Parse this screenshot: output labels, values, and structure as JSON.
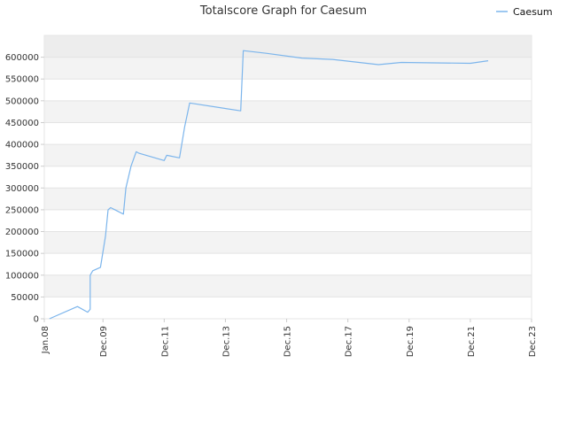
{
  "chart_data": {
    "type": "line",
    "title": "Totalscore Graph for Caesum",
    "xlabel": "",
    "ylabel": "",
    "x_tick_labels": [
      "Jan.08",
      "Dec.09",
      "Dec.11",
      "Dec.13",
      "Dec.15",
      "Dec.17",
      "Dec.19",
      "Dec.21",
      "Dec.23"
    ],
    "y_tick_labels": [
      "0",
      "50000",
      "100000",
      "150000",
      "200000",
      "250000",
      "300000",
      "350000",
      "400000",
      "450000",
      "500000",
      "550000",
      "600000"
    ],
    "x_range": [
      "2008-01",
      "2023-12"
    ],
    "ylim": [
      0,
      650000
    ],
    "grid": true,
    "legend_position": "top-right",
    "series": [
      {
        "name": "Caesum",
        "color": "#7cb5ec",
        "points": [
          [
            "2008-03",
            0
          ],
          [
            "2009-02",
            28000
          ],
          [
            "2009-06",
            15000
          ],
          [
            "2009-07",
            22000
          ],
          [
            "2009-07",
            100000
          ],
          [
            "2009-08",
            110000
          ],
          [
            "2009-11",
            118000
          ],
          [
            "2010-01",
            190000
          ],
          [
            "2010-02",
            250000
          ],
          [
            "2010-03",
            255000
          ],
          [
            "2010-08",
            240000
          ],
          [
            "2010-09",
            300000
          ],
          [
            "2010-11",
            350000
          ],
          [
            "2011-01",
            383000
          ],
          [
            "2011-02",
            380000
          ],
          [
            "2011-12",
            363000
          ],
          [
            "2012-01",
            375000
          ],
          [
            "2012-06",
            369000
          ],
          [
            "2012-08",
            440000
          ],
          [
            "2012-10",
            495000
          ],
          [
            "2014-06",
            477000
          ],
          [
            "2014-07",
            615000
          ],
          [
            "2015-04",
            609000
          ],
          [
            "2016-06",
            598000
          ],
          [
            "2017-06",
            595000
          ],
          [
            "2018-12",
            583000
          ],
          [
            "2019-09",
            588000
          ],
          [
            "2021-12",
            586000
          ],
          [
            "2022-07",
            592000
          ]
        ]
      }
    ]
  }
}
